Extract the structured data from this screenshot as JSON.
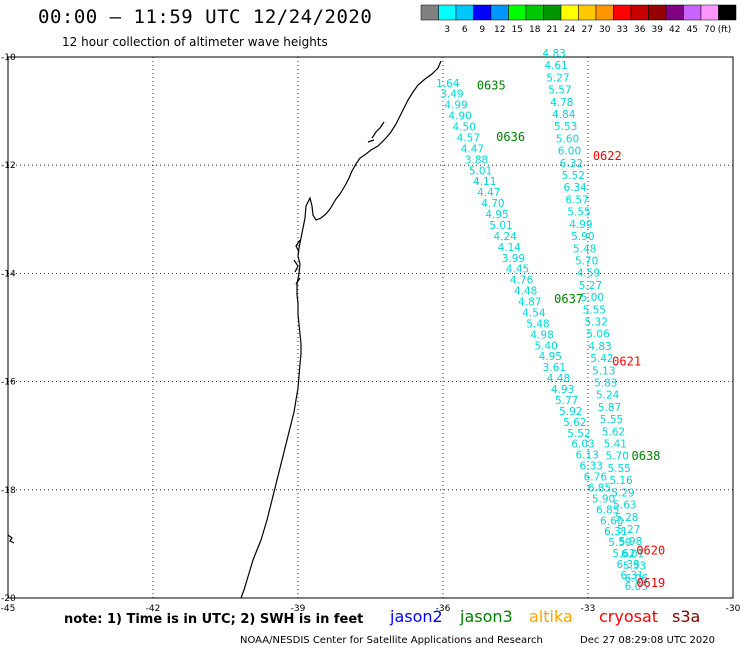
{
  "header": {
    "title": "00:00 – 11:59 UTC 12/24/2020",
    "subtitle": "12 hour collection of altimeter wave heights"
  },
  "legend": {
    "colors": [
      "#808080",
      "#00ffff",
      "#00c8ff",
      "#0000ff",
      "#0096ff",
      "#00ff00",
      "#00c800",
      "#009600",
      "#ffff00",
      "#ffc800",
      "#ff9600",
      "#ff0000",
      "#c80000",
      "#960000",
      "#800080",
      "#c864ff",
      "#ff96ff",
      "#000000"
    ],
    "labels": [
      "3",
      "6",
      "9",
      "12",
      "15",
      "18",
      "21",
      "24",
      "27",
      "30",
      "33",
      "36",
      "39",
      "42",
      "45",
      "70"
    ],
    "unit": "(ft)"
  },
  "axes": {
    "lat_ticks": [
      "-10",
      "-12",
      "-14",
      "-16",
      "-18",
      "-20"
    ],
    "lon_ticks": [
      "-45",
      "-42",
      "-39",
      "-36",
      "-33",
      "-30"
    ],
    "lat_range": [
      -20,
      -10
    ],
    "lon_range": [
      -45,
      -30
    ]
  },
  "tracks": [
    {
      "satellite": "jason3",
      "label_color": "#008000",
      "value_color": "#00d8d8",
      "start": [
        -35.9,
        -10.55
      ],
      "end": [
        -32.0,
        -19.85
      ],
      "values": [
        "1.64",
        "3.49",
        "4.99",
        "4.90",
        "4.50",
        "4.57",
        "4.47",
        "3.88",
        "5.01",
        "4.11",
        "4.47",
        "4.70",
        "4.95",
        "5.01",
        "4.24",
        "4.14",
        "3.99",
        "4.45",
        "4.76",
        "4.48",
        "4.87",
        "4.54",
        "5.48",
        "4.98",
        "5.40",
        "4.95",
        "3.61",
        "4.48",
        "4.93",
        "5.77",
        "5.92",
        "5.62",
        "5.52",
        "6.03",
        "6.13",
        "6.33",
        "6.76",
        "6.85",
        "5.90",
        "6.85",
        "6.60",
        "6.31",
        "5.59",
        "5.62",
        "6.33",
        "6.31",
        "6.05"
      ],
      "pass_labels": [
        {
          "text": "0635",
          "lon": -35.3,
          "lat": -10.6
        },
        {
          "text": "0636",
          "lon": -34.9,
          "lat": -11.55
        },
        {
          "text": "0637",
          "lon": -33.7,
          "lat": -14.55
        },
        {
          "text": "0638",
          "lon": -32.1,
          "lat": -17.45
        }
      ]
    },
    {
      "satellite": "cryosat",
      "label_color": "#ff0000",
      "value_color": "#00d8d8",
      "start": [
        -33.7,
        -10.0
      ],
      "end": [
        -32.0,
        -19.7
      ],
      "values": [
        "4.83",
        "4.61",
        "5.27",
        "5.57",
        "4.78",
        "4.84",
        "5.53",
        "5.60",
        "6.00",
        "6.32",
        "5.52",
        "6.34",
        "6.57",
        "5.55",
        "4.99",
        "5.90",
        "5.48",
        "5.70",
        "4.59",
        "5.27",
        "5.00",
        "5.55",
        "5.32",
        "5.06",
        "4.83",
        "5.42",
        "5.13",
        "5.83",
        "5.24",
        "5.87",
        "5.55",
        "5.62",
        "5.41",
        "5.70",
        "5.55",
        "5.16",
        "5.29",
        "5.63",
        "5.28",
        "5.27",
        "5.98",
        "6.01",
        "5.53",
        "6.06"
      ],
      "pass_labels": [
        {
          "text": "0622",
          "lon": -32.9,
          "lat": -11.9
        },
        {
          "text": "0621",
          "lon": -32.5,
          "lat": -15.7
        },
        {
          "text": "0620",
          "lon": -32.0,
          "lat": -19.2
        },
        {
          "text": "0619",
          "lon": -32.0,
          "lat": -19.8
        }
      ]
    }
  ],
  "note": "note: 1) Time is in UTC; 2) SWH is in feet",
  "satellites": [
    {
      "name": "jason2",
      "color": "#0000ff"
    },
    {
      "name": "jason3",
      "color": "#008000"
    },
    {
      "name": "altika",
      "color": "#ffa500"
    },
    {
      "name": "cryosat",
      "color": "#ff0000"
    },
    {
      "name": "s3a",
      "color": "#800000"
    }
  ],
  "footer": {
    "credit": "NOAA/NESDIS Center for Satellite Applications and Research",
    "timestamp": "Dec 27 08:29:08 UTC 2020"
  }
}
